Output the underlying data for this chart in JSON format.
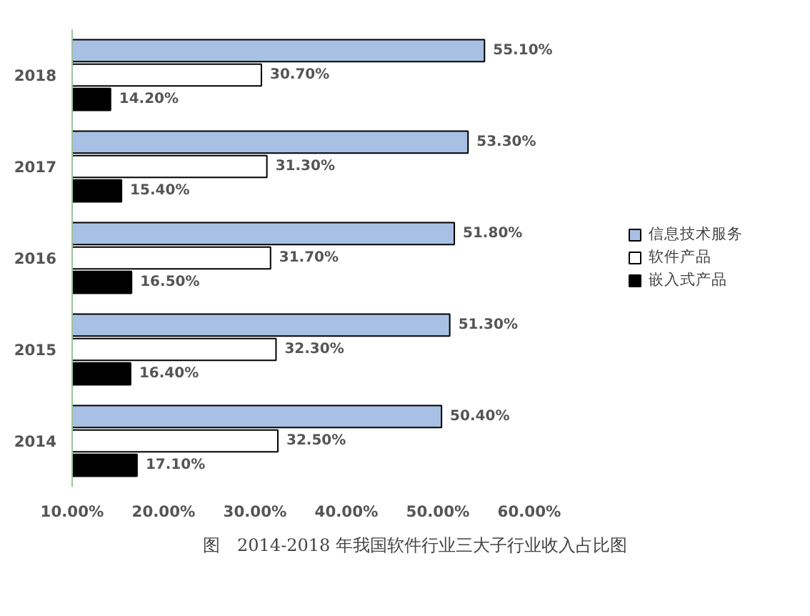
{
  "chart_data": {
    "type": "bar",
    "orientation": "horizontal",
    "categories": [
      "2018",
      "2017",
      "2016",
      "2015",
      "2014"
    ],
    "series": [
      {
        "name": "信息技术服务",
        "color": "#a8c0e4",
        "values": [
          55.1,
          53.3,
          51.8,
          51.3,
          50.4
        ],
        "value_labels": [
          "55.10%",
          "53.30%",
          "51.80%",
          "51.30%",
          "50.40%"
        ]
      },
      {
        "name": "软件产品",
        "color": "#ffffff",
        "values": [
          30.7,
          31.3,
          31.7,
          32.3,
          32.5
        ],
        "value_labels": [
          "30.70%",
          "31.30%",
          "31.70%",
          "32.30%",
          "32.50%"
        ]
      },
      {
        "name": "嵌入式产品",
        "color": "#000000",
        "values": [
          14.2,
          15.4,
          16.5,
          16.4,
          17.1
        ],
        "value_labels": [
          "14.20%",
          "15.40%",
          "16.50%",
          "16.40%",
          "17.10%"
        ]
      }
    ],
    "xlim": [
      10,
      60
    ],
    "xticks": [
      {
        "value": 10,
        "label": "10.00%"
      },
      {
        "value": 20,
        "label": "20.00%"
      },
      {
        "value": 30,
        "label": "30.00%"
      },
      {
        "value": 40,
        "label": "40.00%"
      },
      {
        "value": 50,
        "label": "50.00%"
      },
      {
        "value": 60,
        "label": "60.00%"
      }
    ],
    "grid": false,
    "legend": "right",
    "annotations": [
      "图　2014-2018 年我国软件行业三大子行业收入占比图"
    ]
  }
}
